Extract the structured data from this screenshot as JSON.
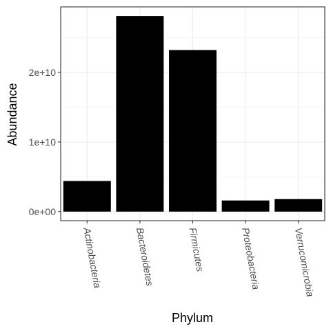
{
  "chart_data": {
    "type": "bar",
    "xlabel": "Phylum",
    "ylabel": "Abundance",
    "categories": [
      "Actinobacteria",
      "Bacteroidetes",
      "Firmicutes",
      "Proteobacteria",
      "Verrucomicrobia"
    ],
    "values": [
      4400000000,
      28100000000,
      23200000000,
      1600000000,
      1800000000
    ],
    "ylim": [
      -1300000000,
      29400000000
    ],
    "yticks": [
      0,
      10000000000,
      20000000000
    ],
    "ytick_labels": [
      "0e+00",
      "1e+10",
      "2e+10"
    ],
    "grid": true,
    "bar_color": "#000000",
    "theme": "bw"
  }
}
